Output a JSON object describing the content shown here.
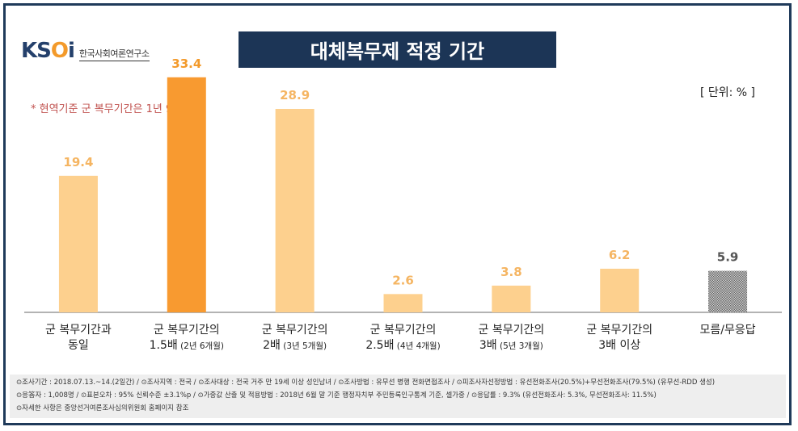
{
  "logo": {
    "mark_prefix": "K",
    "mark_s": "S",
    "mark_o": "O",
    "mark_i": "i",
    "subtitle": "한국사회여론연구소"
  },
  "title": "대체복무제 적정 기간",
  "unit": "[ 단위: % ]",
  "note": "* 현역기준 군 복무기간은 1년 9개월",
  "chart_data": {
    "type": "bar",
    "categories": [
      [
        "군 복무기간과",
        "동일"
      ],
      [
        "군 복무기간의",
        "1.5배 (2년 6개월)"
      ],
      [
        "군 복무기간의",
        "2배 (3년 5개월)"
      ],
      [
        "군 복무기간의",
        "2.5배 (4년 4개월)"
      ],
      [
        "군 복무기간의",
        "3배 (5년 3개월)"
      ],
      [
        "군 복무기간의",
        "3배 이상"
      ],
      [
        "모름/무응답",
        ""
      ]
    ],
    "values": [
      19.4,
      33.4,
      28.9,
      2.6,
      3.8,
      6.2,
      5.9
    ],
    "value_labels": [
      "19.4",
      "33.4",
      "28.9",
      "2.6",
      "3.8",
      "6.2",
      "5.9"
    ],
    "ylim": [
      0,
      36
    ],
    "colors": [
      "#fdd08e",
      "#f89a30",
      "#fdd08e",
      "#fdd08e",
      "#fdd08e",
      "#fdd08e",
      "#9a9a9a"
    ],
    "label_colors": [
      "#f5b562",
      "#f39a2b",
      "#f5b562",
      "#f5b562",
      "#f5b562",
      "#f5b562",
      "#555555"
    ],
    "highlight_index": 1,
    "pattern_index": 6
  },
  "footer": {
    "line1": "⊙조사기간 : 2018.07.13.~14.(2일간) / ⊙조사지역 : 전국 / ⊙조사대상 : 전국 거주 만 19세 이상 성인남녀 / ⊙조사방법 : 유무선 병행 전화면접조사 / ⊙피조사자선정방법 : 유선전화조사(20.5%)+무선전화조사(79.5%) (유무선-RDD 생성)",
    "line2": "⊙응答자 : 1,008명 / ⊙표본오차 : 95% 신뢰수준 ±3.1%p / ⊙가중값 산출 및 적용방법 : 2018년 6월 말 기준 행정자치부 주민등록인구통계 기준, 셀가중 / ⊙응답률 : 9.3% (유선전화조사: 5.3%, 무선전화조사: 11.5%)",
    "line3": "⊙자세한 사항은 중앙선거여론조사심의위원회 홈페이지 참조"
  }
}
